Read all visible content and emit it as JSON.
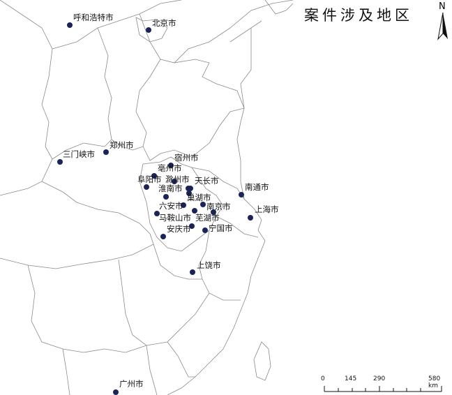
{
  "title": "案件涉及地区",
  "north_label": "N",
  "scale_bar": {
    "ticks": [
      "0",
      "145",
      "290",
      "580 km"
    ]
  },
  "marker_color": "#1a2456",
  "boundary_color": "#8a8a8a",
  "places": [
    {
      "name": "呼和浩特市"
    },
    {
      "name": "北京市"
    },
    {
      "name": "郑州市"
    },
    {
      "name": "三门峡市"
    },
    {
      "name": "宿州市"
    },
    {
      "name": "亳州市"
    },
    {
      "name": "阜阳市"
    },
    {
      "name": "滁州市"
    },
    {
      "name": "天长市"
    },
    {
      "name": "淮南市"
    },
    {
      "name": "巢湖市"
    },
    {
      "name": "南京市"
    },
    {
      "name": "六安市"
    },
    {
      "name": "马鞍山市"
    },
    {
      "name": "芜湖市"
    },
    {
      "name": "安庆市"
    },
    {
      "name": "宁国市"
    },
    {
      "name": "南通市"
    },
    {
      "name": "上海市"
    },
    {
      "name": "上饶市"
    },
    {
      "name": "广州市"
    }
  ]
}
